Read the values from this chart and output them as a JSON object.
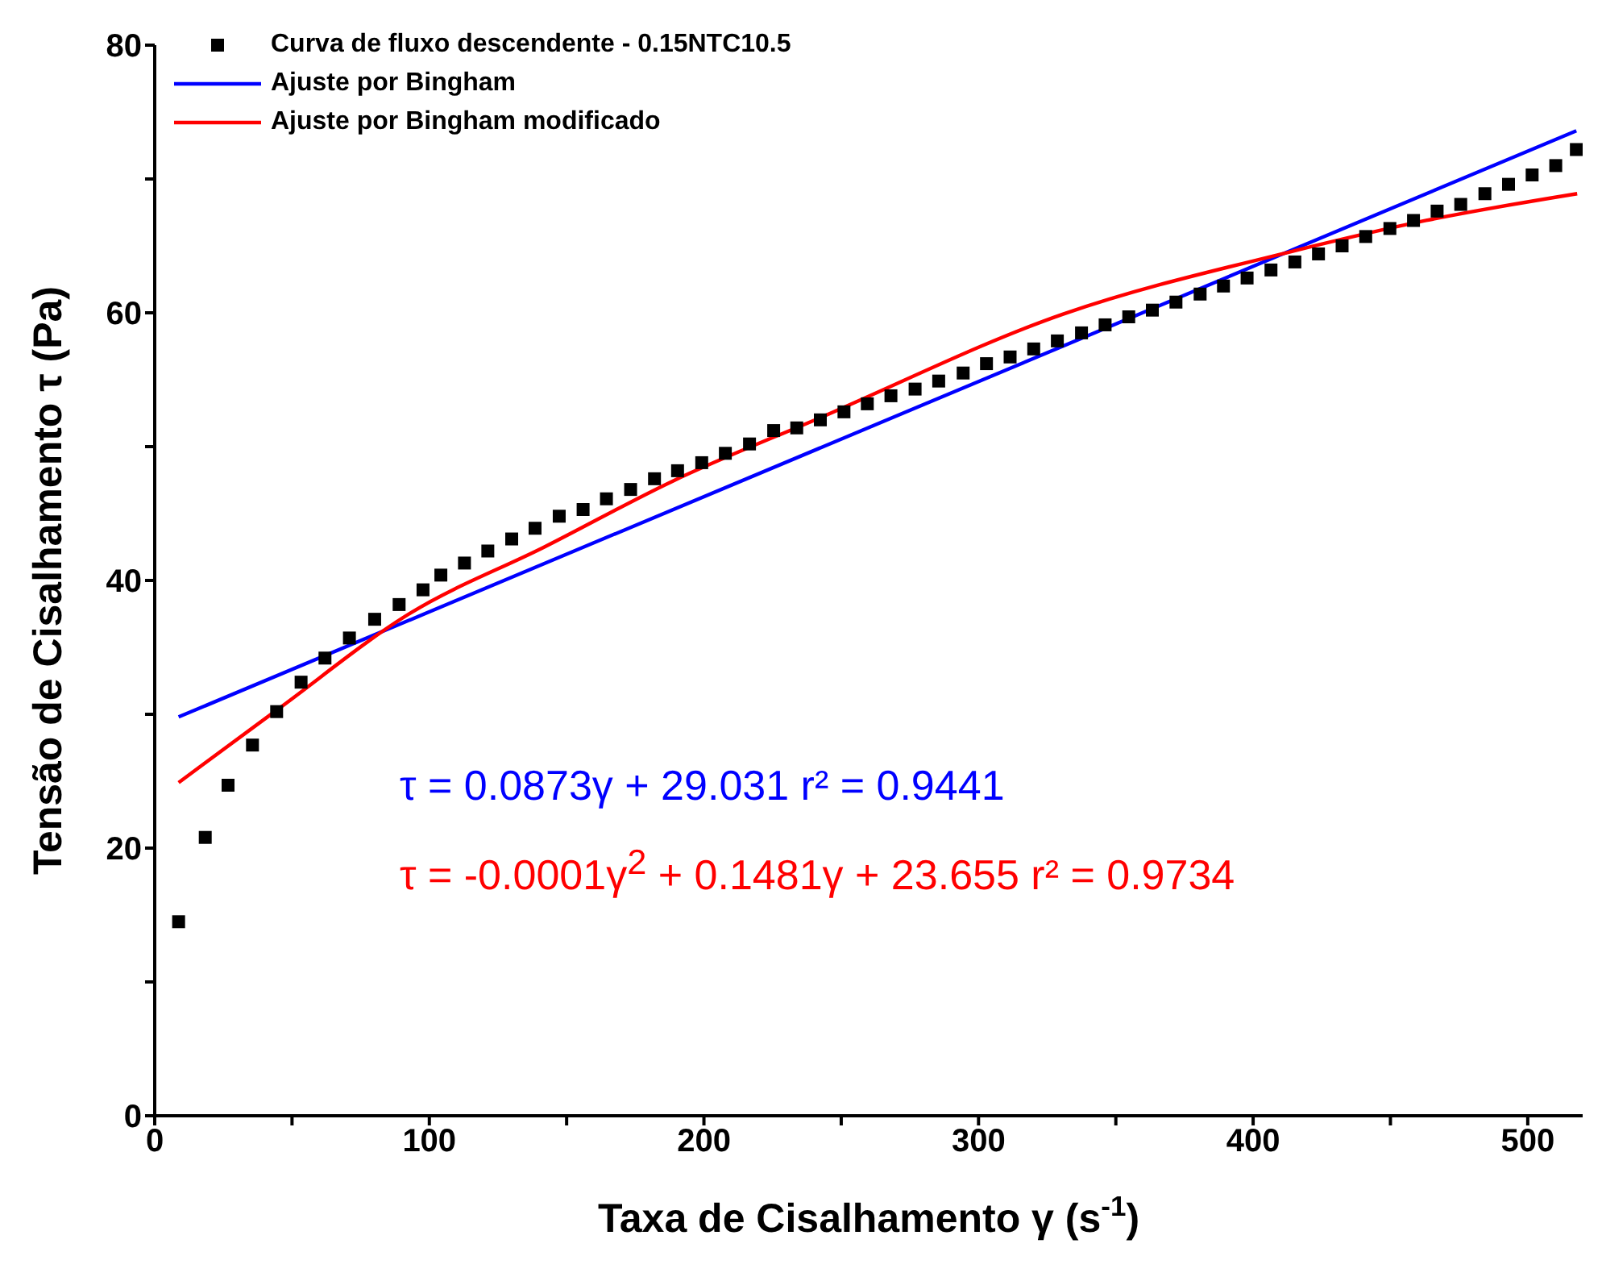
{
  "chart_data": {
    "type": "scatter",
    "xlabel": "Taxa de Cisalhamento γ (s$^{-1}$)",
    "ylabel": "Tensão de Cisalhamento τ (Pa)",
    "xlim": [
      0,
      520
    ],
    "xticks": [
      0,
      {
        "value": 50,
        "label": null
      },
      100,
      {
        "value": 150,
        "label": null
      },
      200,
      {
        "value": 250,
        "label": null
      },
      300,
      {
        "value": 350,
        "label": null
      },
      400,
      {
        "value": 450,
        "label": null
      },
      500
    ],
    "ylim": [
      0,
      80
    ],
    "yticks": [
      0,
      {
        "value": 10,
        "label": null
      },
      20,
      {
        "value": 30,
        "label": null
      },
      40,
      {
        "value": 50,
        "label": null
      },
      60,
      {
        "value": 70,
        "label": null
      },
      80
    ],
    "legend": "top left",
    "series": [
      {
        "name": "Curva de fluxo descendente - 0.15NTC10.5",
        "marker": "square",
        "color": "#000000",
        "x": [
          8.7,
          18.4,
          26.7,
          35.6,
          44.4,
          53.3,
          62,
          70.9,
          80.1,
          89,
          97.7,
          104.2,
          112.8,
          121.3,
          130,
          138.5,
          147.3,
          156,
          164.5,
          173.3,
          182,
          190.4,
          199.2,
          207.8,
          216.6,
          225.4,
          233.8,
          242.4,
          251,
          259.5,
          268.1,
          276.9,
          285.5,
          294.4,
          302.9,
          311.5,
          320.1,
          328.7,
          337.5,
          346.1,
          354.7,
          363.3,
          371.9,
          380.7,
          389.2,
          397.8,
          406.5,
          415.2,
          423.8,
          432.4,
          441,
          449.8,
          458.4,
          467,
          475.6,
          484.4,
          493,
          501.6,
          510.2,
          517.7
        ],
        "values": [
          14.5,
          20.8,
          24.7,
          27.7,
          30.2,
          32.4,
          34.2,
          35.7,
          37.1,
          38.2,
          39.3,
          40.4,
          41.3,
          42.2,
          43.1,
          43.9,
          44.8,
          45.3,
          46.1,
          46.8,
          47.6,
          48.2,
          48.8,
          49.5,
          50.2,
          51.2,
          51.4,
          52.0,
          52.6,
          53.2,
          53.8,
          54.3,
          54.9,
          55.5,
          56.2,
          56.7,
          57.3,
          57.9,
          58.5,
          59.1,
          59.7,
          60.2,
          60.8,
          61.4,
          62.0,
          62.6,
          63.2,
          63.8,
          64.4,
          65.0,
          65.7,
          66.3,
          66.9,
          67.6,
          68.1,
          68.9,
          69.6,
          70.3,
          71.0,
          72.2
        ]
      },
      {
        "name": "Ajuste por Bingham",
        "type": "line",
        "marker": "none",
        "color": "#0000ff",
        "x": [
          8.7,
          517.7
        ],
        "values": [
          29.8,
          73.6
        ]
      },
      {
        "name": "Ajuste por Bingham modificado",
        "type": "line",
        "marker": "none",
        "color": "#ff0000",
        "x": [
          8.7,
          45,
          93.4,
          141.9,
          188.4,
          242.8,
          330.8,
          412.4,
          463,
          518
        ],
        "values": [
          24.9,
          30.4,
          37.6,
          42.5,
          47.4,
          52.2,
          59.9,
          64.5,
          66.9,
          68.9
        ]
      }
    ],
    "annotations": [
      "τ = 0.0873γ + 29.031 r² = 0.9441",
      "τ = -0.0001γ$^{2}$ + 0.1481γ + 23.655 r² = 0.9734"
    ]
  }
}
